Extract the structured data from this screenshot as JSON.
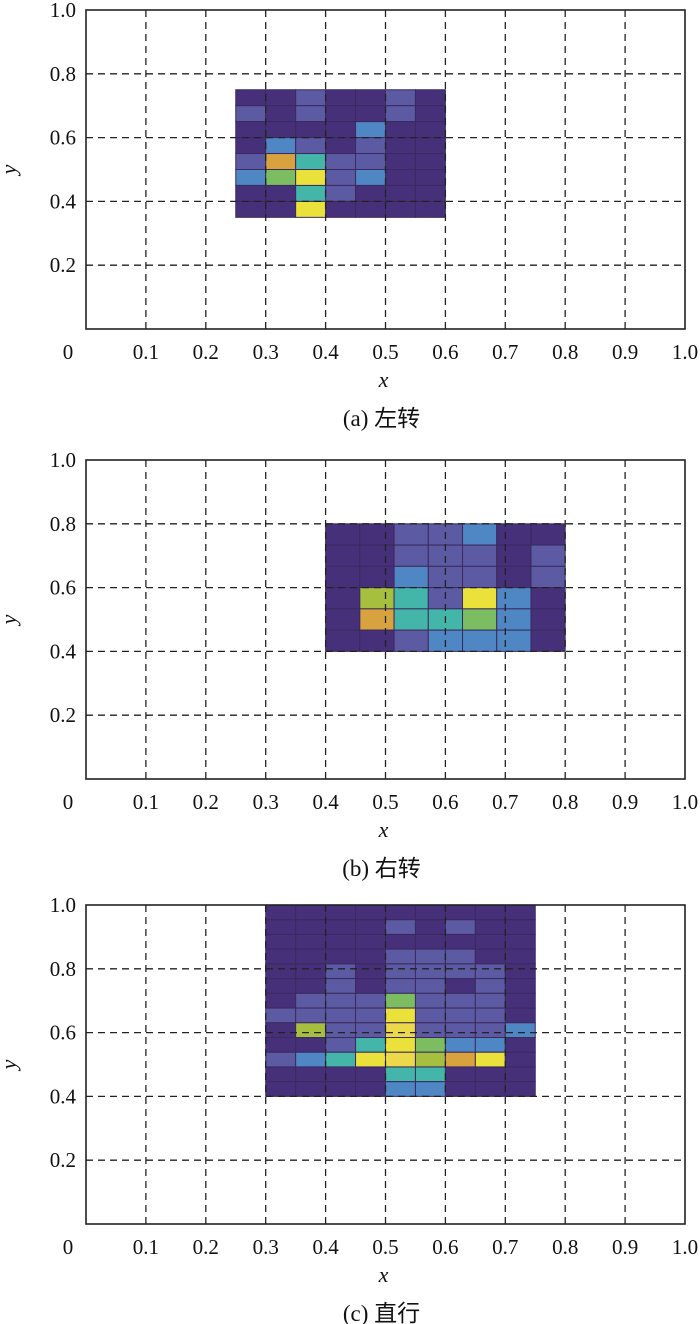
{
  "palette": [
    "#46307a",
    "#5b5aa3",
    "#4f86c4",
    "#44b5a9",
    "#7cbd61",
    "#a7bf3e",
    "#d8a23e",
    "#ecd94a",
    "#eae23a"
  ],
  "chart_data": [
    {
      "type": "heatmap",
      "caption": "(a) 左转",
      "xlabel": "x",
      "ylabel": "y",
      "xlim": [
        0,
        1
      ],
      "ylim": [
        0,
        1
      ],
      "xticks": [
        "0",
        "0.1",
        "0.2",
        "0.3",
        "0.4",
        "0.5",
        "0.6",
        "0.7",
        "0.8",
        "0.9",
        "1.0"
      ],
      "yticks": [
        "0.2",
        "0.4",
        "0.6",
        "0.8",
        "1.0"
      ],
      "grid": true,
      "region": {
        "x0": 0.25,
        "x1": 0.6,
        "y0": 0.35,
        "y1": 0.75
      },
      "levels_top_to_bottom": [
        [
          0,
          0,
          1,
          0,
          0,
          1,
          0
        ],
        [
          1,
          0,
          1,
          0,
          0,
          1,
          0
        ],
        [
          0,
          0,
          0,
          0,
          2,
          0,
          0
        ],
        [
          0,
          2,
          1,
          0,
          1,
          0,
          0
        ],
        [
          1,
          6,
          3,
          1,
          1,
          0,
          0
        ],
        [
          2,
          4,
          8,
          1,
          2,
          0,
          0
        ],
        [
          0,
          0,
          3,
          1,
          0,
          0,
          0
        ],
        [
          0,
          0,
          8,
          0,
          0,
          0,
          0
        ]
      ]
    },
    {
      "type": "heatmap",
      "caption": "(b) 右转",
      "xlabel": "x",
      "ylabel": "y",
      "xlim": [
        0,
        1
      ],
      "ylim": [
        0,
        1
      ],
      "xticks": [
        "0",
        "0.1",
        "0.2",
        "0.3",
        "0.4",
        "0.5",
        "0.6",
        "0.7",
        "0.8",
        "0.9",
        "1.0"
      ],
      "yticks": [
        "0.2",
        "0.4",
        "0.6",
        "0.8",
        "1.0"
      ],
      "grid": true,
      "region": {
        "x0": 0.4,
        "x1": 0.8,
        "y0": 0.4,
        "y1": 0.8
      },
      "levels_top_to_bottom": [
        [
          0,
          0,
          1,
          1,
          2,
          0,
          0
        ],
        [
          0,
          0,
          1,
          1,
          1,
          0,
          1
        ],
        [
          0,
          0,
          2,
          1,
          1,
          0,
          1
        ],
        [
          0,
          5,
          3,
          1,
          8,
          2,
          0
        ],
        [
          0,
          6,
          3,
          3,
          4,
          2,
          0
        ],
        [
          0,
          0,
          1,
          2,
          2,
          2,
          0
        ]
      ]
    },
    {
      "type": "heatmap",
      "caption": "(c) 直行",
      "xlabel": "x",
      "ylabel": "y",
      "xlim": [
        0,
        1
      ],
      "ylim": [
        0,
        1
      ],
      "xticks": [
        "0",
        "0.1",
        "0.2",
        "0.3",
        "0.4",
        "0.5",
        "0.6",
        "0.7",
        "0.8",
        "0.9",
        "1.0"
      ],
      "yticks": [
        "0.2",
        "0.4",
        "0.6",
        "0.8",
        "1.0"
      ],
      "grid": true,
      "region": {
        "x0": 0.3,
        "x1": 0.75,
        "y0": 0.4,
        "y1": 1.0
      },
      "levels_top_to_bottom": [
        [
          0,
          0,
          0,
          0,
          0,
          0,
          0,
          0,
          0
        ],
        [
          0,
          0,
          0,
          0,
          1,
          0,
          1,
          0,
          0
        ],
        [
          0,
          0,
          0,
          0,
          0,
          0,
          0,
          0,
          0
        ],
        [
          0,
          0,
          0,
          0,
          1,
          1,
          1,
          0,
          0
        ],
        [
          0,
          0,
          1,
          0,
          1,
          1,
          1,
          1,
          0
        ],
        [
          0,
          0,
          1,
          0,
          1,
          1,
          0,
          1,
          0
        ],
        [
          0,
          1,
          1,
          1,
          4,
          1,
          1,
          1,
          0
        ],
        [
          1,
          1,
          1,
          1,
          8,
          1,
          1,
          1,
          0
        ],
        [
          0,
          5,
          1,
          1,
          7,
          1,
          1,
          1,
          2
        ],
        [
          0,
          0,
          1,
          3,
          8,
          4,
          2,
          2,
          0
        ],
        [
          1,
          2,
          3,
          8,
          7,
          5,
          6,
          8,
          0
        ],
        [
          0,
          0,
          0,
          0,
          3,
          3,
          0,
          0,
          0
        ],
        [
          0,
          0,
          0,
          0,
          2,
          2,
          0,
          0,
          0
        ]
      ]
    }
  ]
}
